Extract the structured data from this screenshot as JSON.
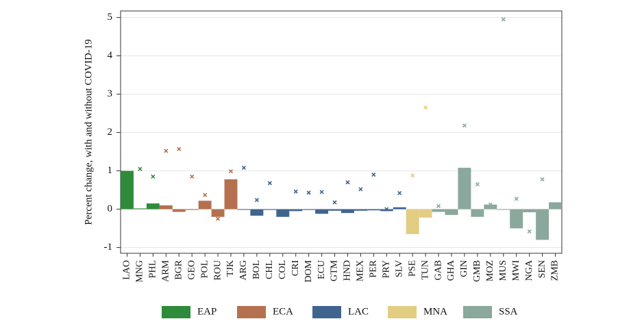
{
  "chart_data": {
    "type": "bar",
    "y_label": "Percent change, with and without COVID-19",
    "categories": [
      "LAO",
      "MNG",
      "PHL",
      "ARM",
      "BGR",
      "GEO",
      "POL",
      "ROU",
      "TJK",
      "ARG",
      "BOL",
      "CHL",
      "COL",
      "CRI",
      "DOM",
      "ECU",
      "GTM",
      "HND",
      "MEX",
      "PER",
      "PRY",
      "SLV",
      "PSE",
      "TUN",
      "GAB",
      "GHA",
      "GIN",
      "GMB",
      "MOZ",
      "MUS",
      "MWI",
      "NGA",
      "SEN",
      "ZMB"
    ],
    "series": [
      {
        "name": "EAP",
        "color": "#2e8b3a",
        "values": [
          1.0,
          0.02,
          0.15,
          null,
          null,
          null,
          null,
          null,
          null,
          null,
          null,
          null,
          null,
          null,
          null,
          null,
          null,
          null,
          null,
          null,
          null,
          null,
          null,
          null,
          null,
          null,
          null,
          null,
          null,
          null,
          null,
          null,
          null,
          null
        ],
        "markers": [
          0.62,
          1.05,
          0.85,
          null,
          null,
          null,
          null,
          null,
          null,
          null,
          null,
          null,
          null,
          null,
          null,
          null,
          null,
          null,
          null,
          null,
          null,
          null,
          null,
          null,
          null,
          null,
          null,
          null,
          null,
          null,
          null,
          null,
          null,
          null
        ]
      },
      {
        "name": "ECA",
        "color": "#b5714f",
        "values": [
          null,
          null,
          null,
          0.1,
          -0.07,
          -0.02,
          0.22,
          -0.2,
          0.78,
          null,
          null,
          null,
          null,
          null,
          null,
          null,
          null,
          null,
          null,
          null,
          null,
          null,
          null,
          null,
          null,
          null,
          null,
          null,
          null,
          null,
          null,
          null,
          null,
          null
        ],
        "markers": [
          null,
          null,
          null,
          1.52,
          1.57,
          0.85,
          0.37,
          -0.25,
          0.99,
          null,
          null,
          null,
          null,
          null,
          null,
          null,
          null,
          null,
          null,
          null,
          null,
          null,
          null,
          null,
          null,
          null,
          null,
          null,
          null,
          null,
          null,
          null,
          null,
          null
        ]
      },
      {
        "name": "LAC",
        "color": "#41648f",
        "values": [
          null,
          null,
          null,
          null,
          null,
          null,
          null,
          null,
          null,
          0.0,
          -0.17,
          -0.02,
          -0.2,
          -0.05,
          -0.02,
          -0.12,
          -0.04,
          -0.1,
          -0.04,
          -0.03,
          -0.05,
          0.05,
          null,
          null,
          null,
          null,
          null,
          null,
          null,
          null,
          null,
          null,
          null,
          null
        ],
        "markers": [
          null,
          null,
          null,
          null,
          null,
          null,
          null,
          null,
          null,
          1.08,
          0.24,
          0.68,
          -0.07,
          0.46,
          0.43,
          0.45,
          0.18,
          0.7,
          0.52,
          0.9,
          0.0,
          0.42,
          null,
          null,
          null,
          null,
          null,
          null,
          null,
          null,
          null,
          null,
          null,
          null
        ]
      },
      {
        "name": "MNA",
        "color": "#e3cd82",
        "values": [
          null,
          null,
          null,
          null,
          null,
          null,
          null,
          null,
          null,
          null,
          null,
          null,
          null,
          null,
          null,
          null,
          null,
          null,
          null,
          null,
          null,
          null,
          -0.65,
          -0.22,
          null,
          null,
          null,
          null,
          null,
          null,
          null,
          null,
          null,
          null
        ],
        "markers": [
          null,
          null,
          null,
          null,
          null,
          null,
          null,
          null,
          null,
          null,
          null,
          null,
          null,
          null,
          null,
          null,
          null,
          null,
          null,
          null,
          null,
          null,
          0.88,
          2.65,
          null,
          null,
          null,
          null,
          null,
          null,
          null,
          null,
          null,
          null
        ]
      },
      {
        "name": "SSA",
        "color": "#8aa89b",
        "values": [
          null,
          null,
          null,
          null,
          null,
          null,
          null,
          null,
          null,
          null,
          null,
          null,
          null,
          null,
          null,
          null,
          null,
          null,
          null,
          null,
          null,
          null,
          null,
          null,
          -0.07,
          -0.15,
          1.08,
          -0.2,
          0.12,
          0.0,
          -0.5,
          -0.08,
          -0.8,
          0.18
        ],
        "markers": [
          null,
          null,
          null,
          null,
          null,
          null,
          null,
          null,
          null,
          null,
          null,
          null,
          null,
          null,
          null,
          null,
          null,
          null,
          null,
          null,
          null,
          null,
          null,
          null,
          0.08,
          -0.1,
          2.18,
          0.65,
          0.12,
          4.95,
          0.27,
          -0.58,
          0.78,
          0.08
        ]
      }
    ],
    "ylim": [
      -1.15,
      5.17
    ],
    "yticks": [
      -1,
      0,
      1,
      2,
      3,
      4,
      5
    ],
    "grid": true
  }
}
